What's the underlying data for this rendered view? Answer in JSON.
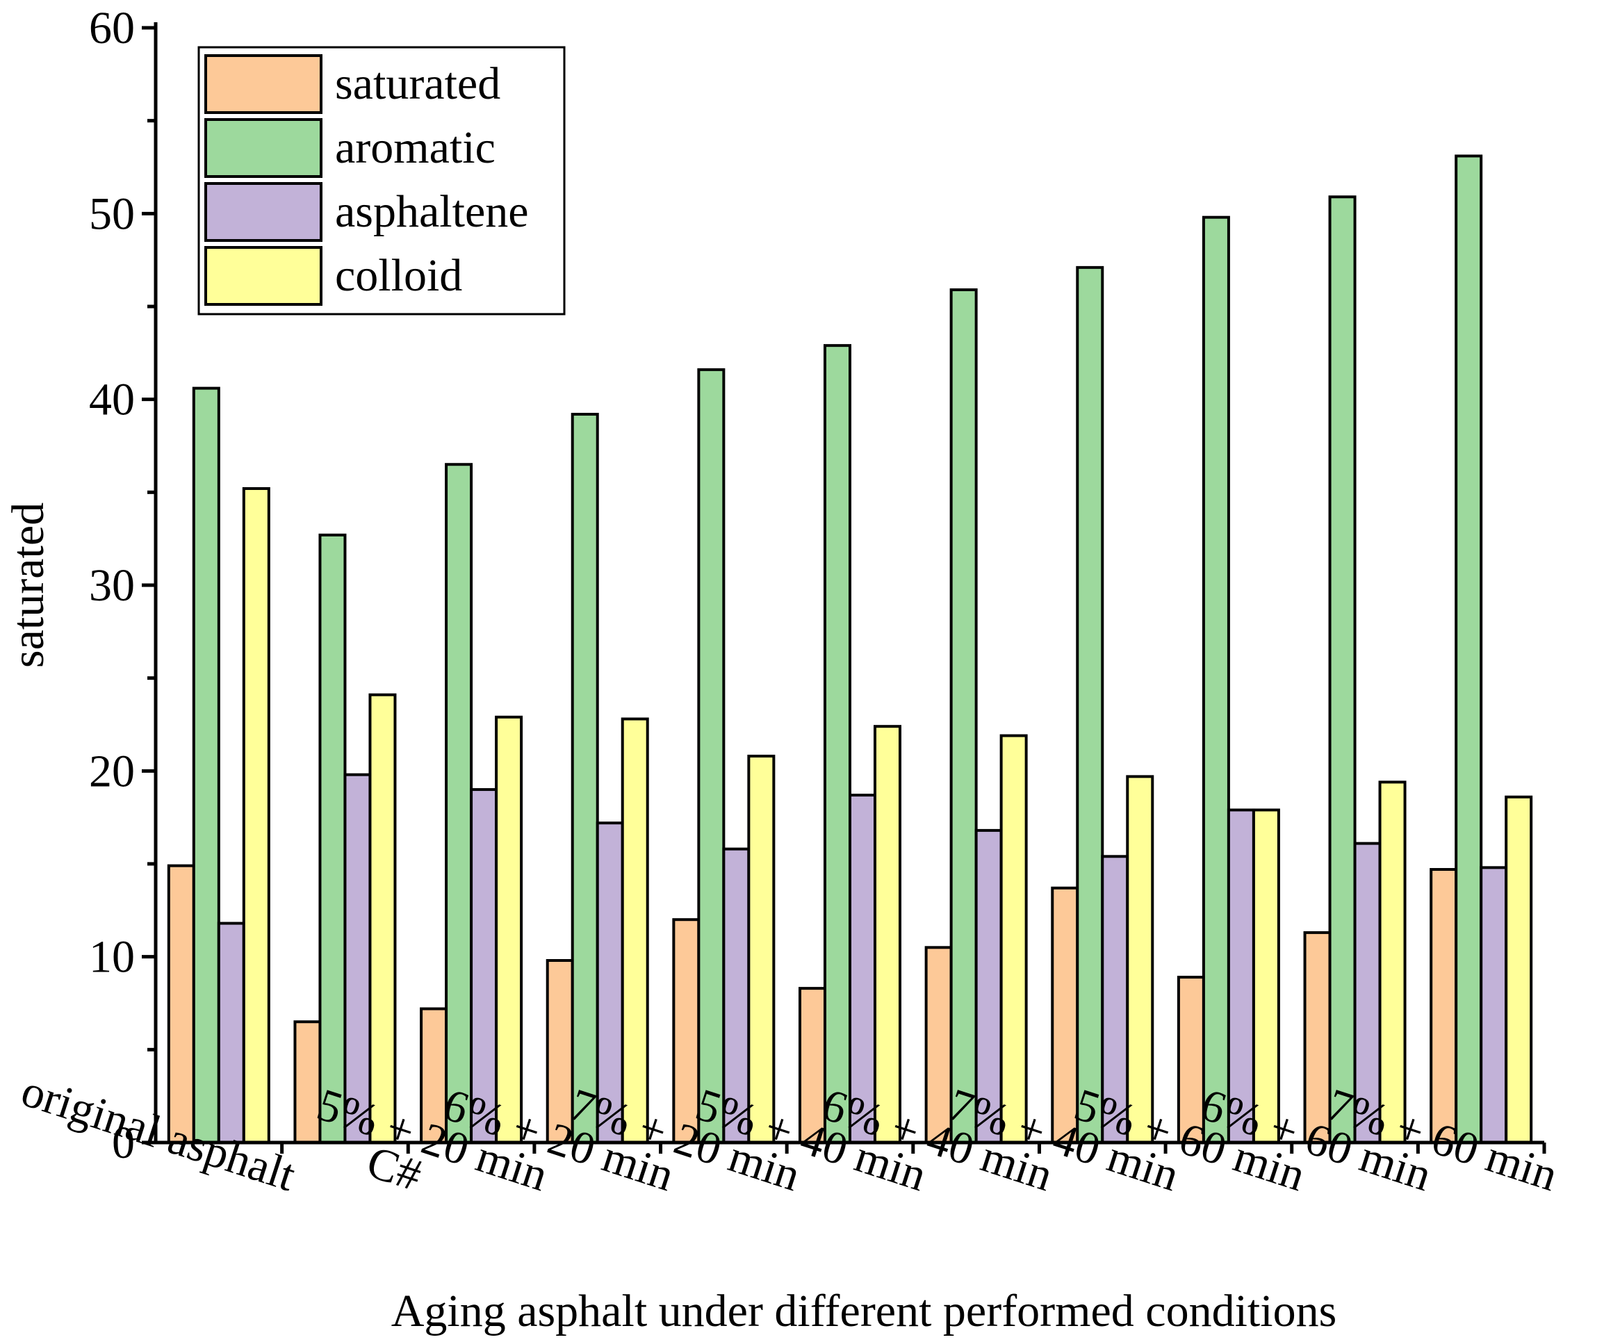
{
  "chart_data": {
    "type": "bar",
    "title": "",
    "xlabel": "Aging asphalt under different performed conditions",
    "ylabel": "saturated",
    "ylim": [
      0,
      60
    ],
    "yticks": [
      0,
      10,
      20,
      30,
      40,
      50,
      60
    ],
    "grid": false,
    "legend_position": "top-left",
    "categories": [
      "original asphalt",
      "C#",
      "5% + 20 min",
      "6% + 20 min",
      "7% + 20 min",
      "5% + 40 min",
      "6% + 40 min",
      "7% + 40 min",
      "5% + 60 min",
      "6% + 60 min",
      "7% + 60 min"
    ],
    "series": [
      {
        "name": "saturated",
        "color": "#FDC998",
        "values": [
          14.9,
          6.5,
          7.2,
          9.8,
          12.0,
          8.3,
          10.5,
          13.7,
          8.9,
          11.3,
          14.7
        ]
      },
      {
        "name": "aromatic",
        "color": "#9DD99D",
        "values": [
          40.6,
          32.7,
          36.5,
          39.2,
          41.6,
          42.9,
          45.9,
          47.1,
          49.8,
          50.9,
          53.1
        ]
      },
      {
        "name": "asphaltene",
        "color": "#C2B2D8",
        "values": [
          11.8,
          19.8,
          19.0,
          17.2,
          15.8,
          18.7,
          16.8,
          15.4,
          17.9,
          16.1,
          14.8
        ]
      },
      {
        "name": "colloid",
        "color": "#FFFF99",
        "values": [
          35.2,
          24.1,
          22.9,
          22.8,
          20.8,
          22.4,
          21.9,
          19.7,
          17.9,
          19.4,
          18.6
        ]
      }
    ]
  }
}
